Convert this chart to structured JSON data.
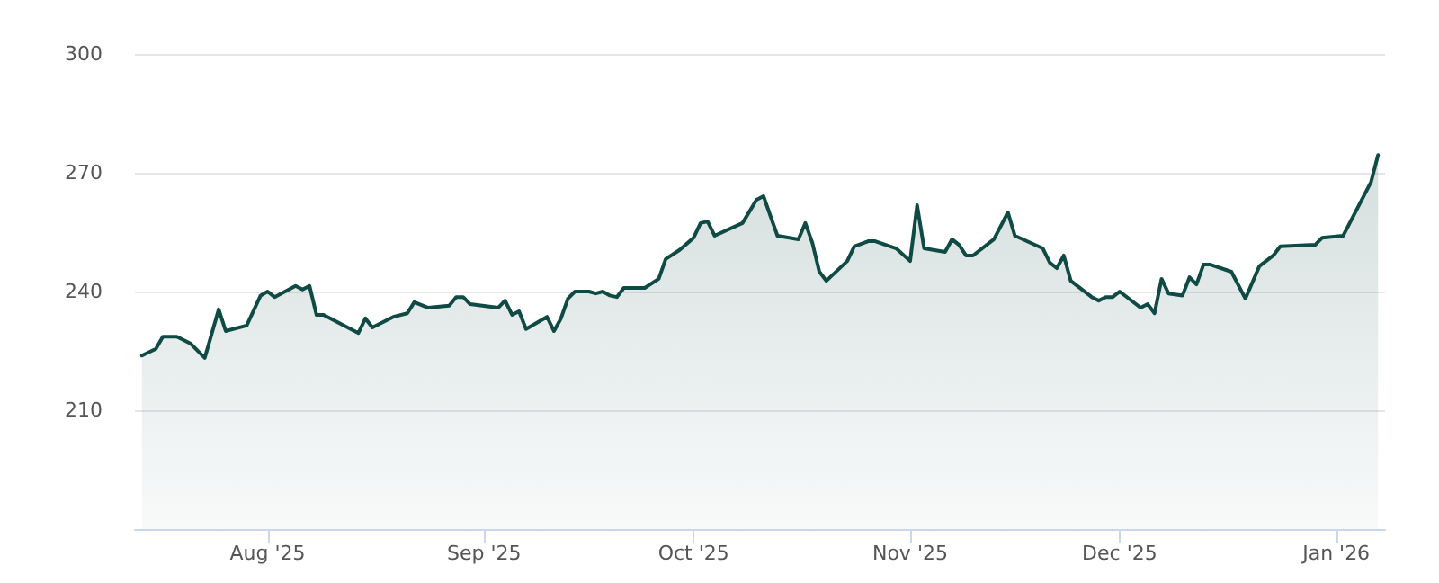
{
  "chart_data": {
    "type": "area",
    "color": "#0f4a44",
    "x": [
      "2025-07-14",
      "2025-07-16",
      "2025-07-17",
      "2025-07-19",
      "2025-07-21",
      "2025-07-23",
      "2025-07-25",
      "2025-07-26",
      "2025-07-29",
      "2025-07-31",
      "2025-08-01",
      "2025-08-02",
      "2025-08-05",
      "2025-08-06",
      "2025-08-07",
      "2025-08-08",
      "2025-08-09",
      "2025-08-14",
      "2025-08-15",
      "2025-08-16",
      "2025-08-19",
      "2025-08-21",
      "2025-08-22",
      "2025-08-24",
      "2025-08-27",
      "2025-08-28",
      "2025-08-29",
      "2025-08-30",
      "2025-09-03",
      "2025-09-04",
      "2025-09-05",
      "2025-09-06",
      "2025-09-07",
      "2025-09-10",
      "2025-09-11",
      "2025-09-12",
      "2025-09-13",
      "2025-09-14",
      "2025-09-16",
      "2025-09-17",
      "2025-09-18",
      "2025-09-19",
      "2025-09-20",
      "2025-09-21",
      "2025-09-24",
      "2025-09-26",
      "2025-09-27",
      "2025-09-29",
      "2025-10-01",
      "2025-10-02",
      "2025-10-03",
      "2025-10-04",
      "2025-10-08",
      "2025-10-10",
      "2025-10-11",
      "2025-10-13",
      "2025-10-16",
      "2025-10-17",
      "2025-10-18",
      "2025-10-19",
      "2025-10-20",
      "2025-10-23",
      "2025-10-24",
      "2025-10-26",
      "2025-10-27",
      "2025-10-30",
      "2025-11-01",
      "2025-11-02",
      "2025-11-03",
      "2025-11-06",
      "2025-11-07",
      "2025-11-08",
      "2025-11-09",
      "2025-11-10",
      "2025-11-13",
      "2025-11-15",
      "2025-11-16",
      "2025-11-20",
      "2025-11-21",
      "2025-11-22",
      "2025-11-23",
      "2025-11-24",
      "2025-11-27",
      "2025-11-28",
      "2025-11-29",
      "2025-11-30",
      "2025-12-01",
      "2025-12-04",
      "2025-12-05",
      "2025-12-06",
      "2025-12-07",
      "2025-12-08",
      "2025-12-10",
      "2025-12-11",
      "2025-12-12",
      "2025-12-13",
      "2025-12-14",
      "2025-12-17",
      "2025-12-19",
      "2025-12-21",
      "2025-12-23",
      "2025-12-24",
      "2025-12-29",
      "2025-12-30",
      "2026-01-02",
      "2026-01-06",
      "2026-01-07"
    ],
    "values": [
      223.8,
      225.5,
      228.6,
      228.6,
      226.8,
      223.2,
      235.5,
      230,
      231.4,
      239,
      240,
      238.6,
      241.4,
      240.5,
      241.4,
      234.1,
      234.1,
      229.5,
      233.2,
      230.9,
      233.6,
      234.5,
      237.3,
      235.9,
      236.4,
      238.6,
      238.6,
      236.8,
      235.9,
      237.7,
      234.1,
      235,
      230.5,
      233.6,
      230,
      233.2,
      238.2,
      240,
      240,
      239.5,
      240,
      239,
      238.6,
      240.9,
      240.9,
      243.2,
      248.2,
      250.5,
      253.6,
      257.3,
      257.7,
      254.1,
      257.3,
      263.2,
      264.1,
      254.1,
      253.2,
      257.3,
      252.3,
      245,
      242.7,
      247.7,
      251.4,
      252.7,
      252.7,
      250.9,
      247.7,
      261.8,
      250.9,
      250,
      253.2,
      251.8,
      249.1,
      249.1,
      253.2,
      260,
      254.1,
      250.9,
      247.3,
      245.9,
      249.1,
      242.7,
      238.6,
      237.7,
      238.6,
      238.6,
      240,
      235.9,
      236.8,
      234.5,
      243.2,
      239.5,
      239,
      243.6,
      241.8,
      246.8,
      246.8,
      245,
      238.2,
      246.4,
      249.1,
      251.4,
      251.8,
      253.6,
      254.1,
      267.7,
      274.5
    ],
    "xlim": [
      "2025-07-13",
      "2026-01-08"
    ],
    "xticks": [
      {
        "value": "2025-08-01",
        "label": "Aug '25"
      },
      {
        "value": "2025-09-01",
        "label": "Sep '25"
      },
      {
        "value": "2025-10-01",
        "label": "Oct '25"
      },
      {
        "value": "2025-11-01",
        "label": "Nov '25"
      },
      {
        "value": "2025-12-01",
        "label": "Dec '25"
      },
      {
        "value": "2026-01-01",
        "label": "Jan '26"
      }
    ],
    "ylim": [
      180,
      300
    ],
    "yticks": [
      210,
      240,
      270,
      300
    ],
    "grid": "y",
    "marker": "none",
    "line_style": "solid"
  }
}
